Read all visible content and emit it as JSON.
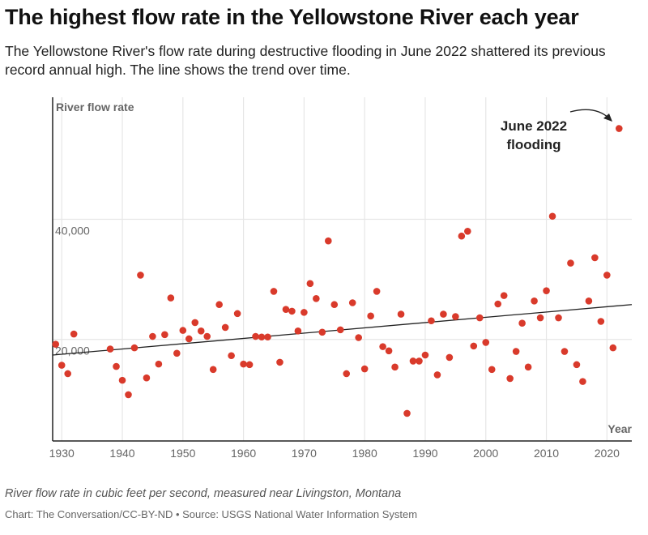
{
  "header": {
    "title": "The highest flow rate in the Yellowstone River each year",
    "subtitle": "The Yellowstone River's flow rate during destructive flooding in June 2022 shattered its previous record annual high. The line shows the trend over time."
  },
  "footer": {
    "note": "River flow rate in cubic feet per second, measured near Livingston, Montana",
    "source": "Chart: The Conversation/CC-BY-ND • Source: USGS National Water Information System"
  },
  "chart_data": {
    "type": "scatter",
    "title": "",
    "xlabel": "Year",
    "ylabel": "River flow rate",
    "xlim": [
      1928.5,
      2024.1
    ],
    "ylim": [
      3100,
      60300
    ],
    "grid": true,
    "x_ticks": [
      1930,
      1940,
      1950,
      1960,
      1970,
      1980,
      1990,
      2000,
      2010,
      2020
    ],
    "y_ticks": [
      20000,
      40000
    ],
    "y_tick_labels": [
      "20,000",
      "40,000"
    ],
    "point_color": "#d93a2b",
    "trend_line": {
      "x": [
        1928.5,
        2024.1
      ],
      "y": [
        17400,
        25800
      ],
      "color": "#222222"
    },
    "annotation": {
      "lines": [
        "June 2022",
        "flooding"
      ],
      "target_year": 2022
    },
    "points": [
      [
        1929,
        19200
      ],
      [
        1930,
        15700
      ],
      [
        1931,
        14300
      ],
      [
        1932,
        20900
      ],
      [
        1938,
        18400
      ],
      [
        1939,
        15500
      ],
      [
        1940,
        13200
      ],
      [
        1941,
        10800
      ],
      [
        1942,
        18600
      ],
      [
        1943,
        30700
      ],
      [
        1944,
        13600
      ],
      [
        1945,
        20500
      ],
      [
        1946,
        15900
      ],
      [
        1947,
        20800
      ],
      [
        1948,
        26900
      ],
      [
        1949,
        17700
      ],
      [
        1950,
        21500
      ],
      [
        1951,
        20100
      ],
      [
        1952,
        22800
      ],
      [
        1953,
        21400
      ],
      [
        1954,
        20500
      ],
      [
        1955,
        15000
      ],
      [
        1956,
        25800
      ],
      [
        1957,
        22000
      ],
      [
        1958,
        17300
      ],
      [
        1959,
        24300
      ],
      [
        1960,
        15900
      ],
      [
        1961,
        15800
      ],
      [
        1962,
        20500
      ],
      [
        1963,
        20400
      ],
      [
        1964,
        20400
      ],
      [
        1965,
        28000
      ],
      [
        1966,
        16200
      ],
      [
        1967,
        25000
      ],
      [
        1968,
        24700
      ],
      [
        1969,
        21400
      ],
      [
        1970,
        24500
      ],
      [
        1971,
        29300
      ],
      [
        1972,
        26800
      ],
      [
        1973,
        21200
      ],
      [
        1974,
        36400
      ],
      [
        1975,
        25800
      ],
      [
        1976,
        21600
      ],
      [
        1977,
        14300
      ],
      [
        1978,
        26100
      ],
      [
        1979,
        20300
      ],
      [
        1980,
        15100
      ],
      [
        1981,
        23900
      ],
      [
        1982,
        28000
      ],
      [
        1983,
        18800
      ],
      [
        1984,
        18100
      ],
      [
        1985,
        15400
      ],
      [
        1986,
        24200
      ],
      [
        1987,
        7700
      ],
      [
        1988,
        16400
      ],
      [
        1989,
        16400
      ],
      [
        1990,
        17400
      ],
      [
        1991,
        23100
      ],
      [
        1992,
        14100
      ],
      [
        1993,
        24200
      ],
      [
        1994,
        17000
      ],
      [
        1995,
        23800
      ],
      [
        1996,
        37200
      ],
      [
        1997,
        38000
      ],
      [
        1998,
        18900
      ],
      [
        1999,
        23600
      ],
      [
        2000,
        19500
      ],
      [
        2001,
        15000
      ],
      [
        2002,
        25900
      ],
      [
        2003,
        27300
      ],
      [
        2004,
        13500
      ],
      [
        2005,
        18000
      ],
      [
        2006,
        22700
      ],
      [
        2007,
        15400
      ],
      [
        2008,
        26400
      ],
      [
        2009,
        23600
      ],
      [
        2010,
        28100
      ],
      [
        2011,
        40500
      ],
      [
        2012,
        23600
      ],
      [
        2013,
        18000
      ],
      [
        2014,
        32700
      ],
      [
        2015,
        15800
      ],
      [
        2016,
        13000
      ],
      [
        2017,
        26400
      ],
      [
        2018,
        33600
      ],
      [
        2019,
        23000
      ],
      [
        2020,
        30700
      ],
      [
        2021,
        18600
      ],
      [
        2022,
        55100
      ]
    ]
  }
}
